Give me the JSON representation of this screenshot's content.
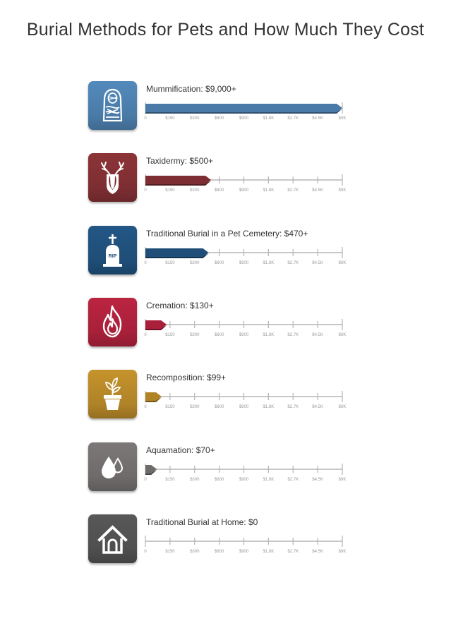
{
  "title": "Burial Methods for Pets and How Much They Cost",
  "chart_data": {
    "type": "bar",
    "orientation": "horizontal",
    "title": "Burial Methods for Pets and How Much They Cost",
    "axis_ticks": [
      "0",
      "$150",
      "$300",
      "$600",
      "$900",
      "$1.8K",
      "$2.7K",
      "$4.5K",
      "$9K"
    ],
    "axis_tick_values": [
      0,
      150,
      300,
      600,
      900,
      1800,
      2700,
      4500,
      9000
    ],
    "categories": [
      "Mummification",
      "Taxidermy",
      "Traditional Burial in a Pet Cemetery",
      "Cremation",
      "Recomposition",
      "Aquamation",
      "Traditional Burial at Home"
    ],
    "values": [
      9000,
      500,
      470,
      130,
      99,
      70,
      0
    ],
    "rows": [
      {
        "label": "Mummification: $9,000+",
        "value": 9000,
        "color": "#4a7ba8",
        "icon": "mummy-icon"
      },
      {
        "label": "Taxidermy: $500+",
        "value": 500,
        "color": "#7d2e32",
        "icon": "deer-head-icon"
      },
      {
        "label": "Traditional Burial in a Pet Cemetery: $470+",
        "value": 470,
        "color": "#1f4e78",
        "icon": "gravestone-icon",
        "icon_text": "RIP"
      },
      {
        "label": "Cremation: $130+",
        "value": 130,
        "color": "#a8203a",
        "icon": "flame-icon"
      },
      {
        "label": "Recomposition: $99+",
        "value": 99,
        "color": "#b08327",
        "icon": "potted-plant-icon"
      },
      {
        "label": "Aquamation: $70+",
        "value": 70,
        "color": "#6f6b6b",
        "icon": "water-drops-icon"
      },
      {
        "label": "Traditional Burial at Home: $0",
        "value": 0,
        "color": "#4f4f4f",
        "icon": "house-icon"
      }
    ],
    "grid": false,
    "legend": "none"
  }
}
